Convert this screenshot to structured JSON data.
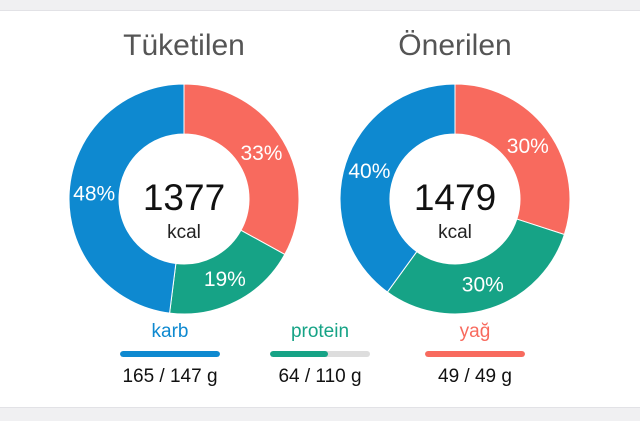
{
  "colors": {
    "carb": "#0e89d0",
    "protein": "#16a386",
    "fat": "#f86a5e"
  },
  "consumed": {
    "title": "Tüketilen",
    "kcal": "1377",
    "unit": "kcal",
    "segments": [
      {
        "key": "fat",
        "value": 33,
        "label": "33%"
      },
      {
        "key": "protein",
        "value": 19,
        "label": "19%"
      },
      {
        "key": "carb",
        "value": 48,
        "label": "48%"
      }
    ]
  },
  "recommended": {
    "title": "Önerilen",
    "kcal": "1479",
    "unit": "kcal",
    "segments": [
      {
        "key": "fat",
        "value": 30,
        "label": "30%"
      },
      {
        "key": "protein",
        "value": 30,
        "label": "30%"
      },
      {
        "key": "carb",
        "value": 40,
        "label": "40%"
      }
    ]
  },
  "macros": [
    {
      "key": "carb",
      "label": "karb",
      "value": "165 / 147 g",
      "progress": 1.0
    },
    {
      "key": "protein",
      "label": "protein",
      "value": "64 / 110 g",
      "progress": 0.58
    },
    {
      "key": "fat",
      "label": "yağ",
      "value": "49 / 49 g",
      "progress": 1.0
    }
  ]
}
